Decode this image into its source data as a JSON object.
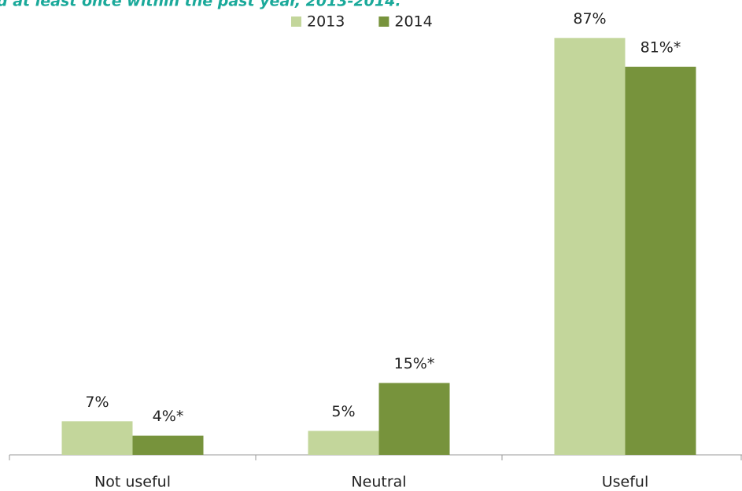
{
  "chart_data": {
    "type": "bar",
    "title": "d at least once within the past year, 2013-2014.",
    "categories": [
      "Not useful",
      "Neutral",
      "Useful"
    ],
    "series": [
      {
        "name": "2013",
        "color": "#c3d69b",
        "values": [
          7,
          5,
          87
        ],
        "value_labels": [
          "7%",
          "5%",
          "87%"
        ]
      },
      {
        "name": "2014",
        "color": "#77933c",
        "values": [
          4,
          15,
          81
        ],
        "value_labels": [
          "4%*",
          "15%*",
          "81%*"
        ]
      }
    ],
    "legend": "top"
  }
}
